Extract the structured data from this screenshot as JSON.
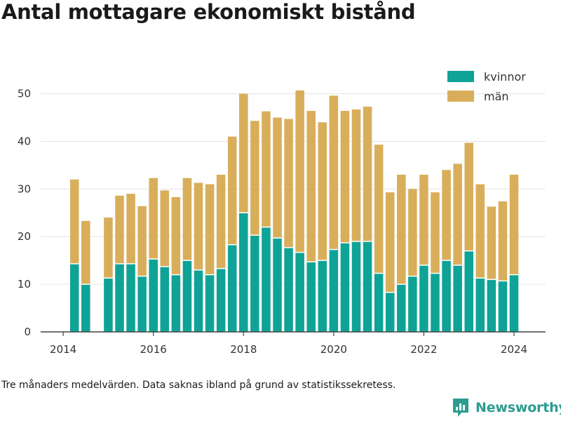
{
  "page": {
    "title": "Antal mottagare ekonomiskt bistånd",
    "caption": "Tre månaders medelvärden. Data saknas ibland på grund av statistikssekretess.",
    "brand": "Newsworthy",
    "brand_icon": "newsworthy-logo-icon"
  },
  "colors": {
    "kvinnor": "#0fa397",
    "man": "#d9ae5b",
    "grid": "#e3e3e3",
    "axis": "#444444",
    "brand": "#2d9c8f"
  },
  "chart_data": {
    "type": "bar",
    "stacked": true,
    "x_unit": "year",
    "xlim": [
      2013.5,
      2024.7
    ],
    "ylim": [
      0,
      52
    ],
    "xticks": [
      2014,
      2016,
      2018,
      2020,
      2022,
      2024
    ],
    "yticks": [
      0,
      10,
      20,
      30,
      40,
      50
    ],
    "grid": "horizontal",
    "legend_position": "top-right",
    "x": [
      2014.25,
      2014.5,
      2015.0,
      2015.25,
      2015.5,
      2015.75,
      2016.0,
      2016.25,
      2016.5,
      2016.75,
      2017.0,
      2017.25,
      2017.5,
      2017.75,
      2018.0,
      2018.25,
      2018.5,
      2018.75,
      2019.0,
      2019.25,
      2019.5,
      2019.75,
      2020.0,
      2020.25,
      2020.5,
      2020.75,
      2021.0,
      2021.25,
      2021.5,
      2021.75,
      2022.0,
      2022.25,
      2022.5,
      2022.75,
      2023.0,
      2023.25,
      2023.5,
      2023.75,
      2024.0
    ],
    "series": [
      {
        "name": "kvinnor",
        "values": [
          14.3,
          10.0,
          11.3,
          14.3,
          14.3,
          11.7,
          15.3,
          13.7,
          12.0,
          15.0,
          13.0,
          12.0,
          13.3,
          18.3,
          25.0,
          20.3,
          22.0,
          19.7,
          17.7,
          16.7,
          14.7,
          15.0,
          17.3,
          18.7,
          19.0,
          19.0,
          12.3,
          8.3,
          10.0,
          11.7,
          14.0,
          12.3,
          15.0,
          14.0,
          17.0,
          11.3,
          11.0,
          10.7,
          12.0
        ]
      },
      {
        "name": "män",
        "values": [
          17.7,
          13.3,
          12.7,
          14.3,
          14.7,
          14.7,
          17.0,
          16.0,
          16.3,
          17.3,
          18.3,
          19.0,
          19.7,
          22.7,
          25.0,
          24.0,
          24.3,
          25.3,
          27.0,
          34.0,
          31.7,
          29.0,
          32.3,
          27.7,
          27.7,
          28.3,
          27.0,
          21.0,
          23.0,
          18.3,
          19.0,
          17.0,
          19.0,
          21.3,
          22.7,
          19.7,
          15.3,
          16.7,
          21.0
        ]
      }
    ]
  }
}
